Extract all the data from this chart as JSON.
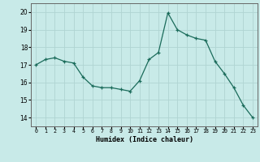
{
  "x": [
    0,
    1,
    2,
    3,
    4,
    5,
    6,
    7,
    8,
    9,
    10,
    11,
    12,
    13,
    14,
    15,
    16,
    17,
    18,
    19,
    20,
    21,
    22,
    23
  ],
  "y": [
    17.0,
    17.3,
    17.4,
    17.2,
    17.1,
    16.3,
    15.8,
    15.7,
    15.7,
    15.6,
    15.5,
    16.1,
    17.3,
    17.7,
    19.95,
    19.0,
    18.7,
    18.5,
    18.4,
    17.2,
    16.5,
    15.7,
    14.7,
    14.0
  ],
  "line_color": "#1a6b5a",
  "bg_color": "#c8eae8",
  "grid_color": "#b0d4d2",
  "xlabel": "Humidex (Indice chaleur)",
  "ylim": [
    13.5,
    20.5
  ],
  "xlim": [
    -0.5,
    23.5
  ],
  "yticks": [
    14,
    15,
    16,
    17,
    18,
    19,
    20
  ],
  "xtick_labels": [
    "0",
    "1",
    "2",
    "3",
    "4",
    "5",
    "6",
    "7",
    "8",
    "9",
    "10",
    "11",
    "12",
    "13",
    "14",
    "15",
    "16",
    "17",
    "18",
    "19",
    "20",
    "21",
    "22",
    "23"
  ],
  "marker": "+",
  "figsize": [
    3.2,
    2.0
  ],
  "dpi": 100
}
